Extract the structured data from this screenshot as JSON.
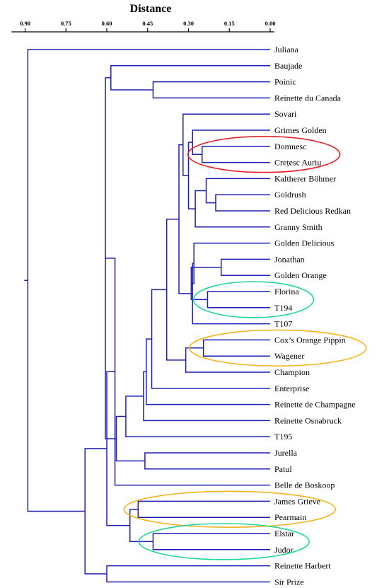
{
  "title": "Distance",
  "axis_ticks": [
    "0.90",
    "0.75",
    "0.60",
    "0.45",
    "0.30",
    "0.15",
    "0.00"
  ],
  "leaves": [
    "Juliana",
    "Baujade",
    "Poinic",
    "Reinette du Canada",
    "Sovari",
    "Grimes Golden",
    "Domnesc",
    "Crețesc Auriu",
    "Kaltherer Böhmer",
    "Goldrush",
    "Red Delicious Redkan",
    "Granny Smith",
    "Golden Delicious",
    "Jonathan",
    "Golden Orange",
    "Florina",
    "T194",
    "T107",
    "Cox’s Orange Pippin",
    "Wagener",
    "Champion",
    "Enterprise",
    "Reinette de Champagne",
    "Reinette Osnabruck",
    "T195",
    "Jurella",
    "Patul",
    "Belle de Boskoop",
    "James Grieve",
    "Pearmain",
    "Elstar",
    "Judor",
    "Reinette Harbert",
    "Sir Prize"
  ],
  "colors": {
    "link": "#1e1eb4",
    "red": "#e8202a",
    "green": "#1fd89a",
    "orange": "#f5b21c"
  },
  "highlights": [
    {
      "leaves": [
        "Domnesc",
        "Crețesc Auriu"
      ],
      "color": "red"
    },
    {
      "leaves": [
        "Florina",
        "T194"
      ],
      "color": "green"
    },
    {
      "leaves": [
        "Cox’s Orange Pippin",
        "Wagener"
      ],
      "color": "orange"
    },
    {
      "leaves": [
        "James Grieve",
        "Pearmain"
      ],
      "color": "orange"
    },
    {
      "leaves": [
        "Elstar",
        "Judor"
      ],
      "color": "green"
    }
  ],
  "merges": [
    {
      "a": "Domnesc",
      "b": "Crețesc Auriu",
      "d": 0.25
    },
    {
      "a": "Goldrush",
      "b": "Red Delicious Redkan",
      "d": 0.2
    },
    {
      "a": "Kaltherer Böhmer",
      "b": "m2",
      "d": 0.235
    },
    {
      "a": "m3",
      "b": "Granny Smith",
      "d": 0.275
    },
    {
      "a": "Grimes Golden",
      "b": "m1",
      "d": 0.285
    },
    {
      "a": "m5",
      "b": "m4",
      "d": 0.3
    },
    {
      "a": "Sovari",
      "b": "m6",
      "d": 0.32
    },
    {
      "a": "Jonathan",
      "b": "Golden Orange",
      "d": 0.18
    },
    {
      "a": "Florina",
      "b": "T194",
      "d": 0.23
    },
    {
      "a": "m8",
      "b": "m9",
      "d": 0.29
    },
    {
      "a": "Golden Delicious",
      "b": "m10",
      "d": 0.28
    },
    {
      "a": "m11",
      "b": "T107",
      "d": 0.285
    },
    {
      "a": "m7",
      "b": "m12",
      "d": 0.335
    },
    {
      "a": "Cox’s Orange Pippin",
      "b": "Wagener",
      "d": 0.245
    },
    {
      "a": "m14",
      "b": "Champion",
      "d": 0.31
    },
    {
      "a": "m13",
      "b": "m15",
      "d": 0.38
    },
    {
      "a": "m16",
      "b": "Enterprise",
      "d": 0.435
    },
    {
      "a": "m17",
      "b": "Reinette de Champagne",
      "d": 0.455
    },
    {
      "a": "m18",
      "b": "Reinette Osnabruck",
      "d": 0.465
    },
    {
      "a": "m19",
      "b": "T195",
      "d": 0.53
    },
    {
      "a": "Jurella",
      "b": "Patul",
      "d": 0.46
    },
    {
      "a": "m20",
      "b": "m21",
      "d": 0.565
    },
    {
      "a": "Poinic",
      "b": "Reinette du Canada",
      "d": 0.43
    },
    {
      "a": "Baujade",
      "b": "m23",
      "d": 0.585
    },
    {
      "a": "m22",
      "b": "m24",
      "d": 0.605
    },
    {
      "a": "m25",
      "b": "Belle de Boskoop",
      "d": 0.57
    },
    {
      "a": "James Grieve",
      "b": "Pearmain",
      "d": 0.485
    },
    {
      "a": "Elstar",
      "b": "Judor",
      "d": 0.43
    },
    {
      "a": "m27",
      "b": "m28",
      "d": 0.515
    },
    {
      "a": "m26",
      "b": "m29",
      "d": 0.6
    },
    {
      "a": "Reinette Harbert",
      "b": "Sir Prize",
      "d": 0.6
    },
    {
      "a": "m30",
      "b": "m31",
      "d": 0.68
    },
    {
      "a": "Juliana",
      "b": "m32",
      "d": 0.89
    }
  ]
}
